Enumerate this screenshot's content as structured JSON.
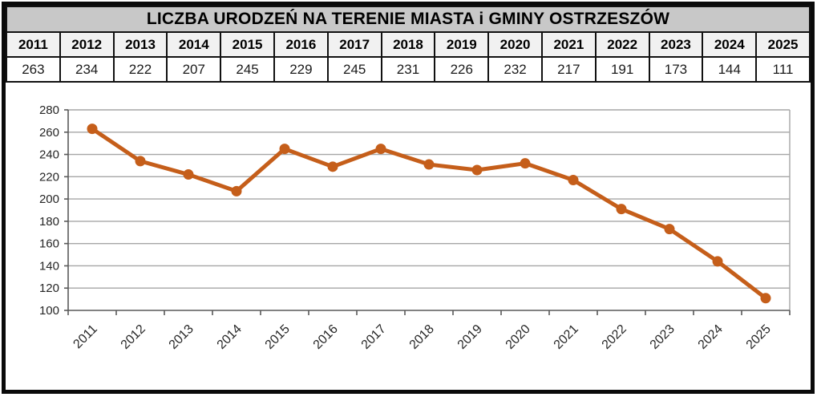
{
  "title": "LICZBA URODZEŃ NA TERENIE MIASTA i GMINY OSTRZESZÓW",
  "table": {
    "years": [
      "2011",
      "2012",
      "2013",
      "2014",
      "2015",
      "2016",
      "2017",
      "2018",
      "2019",
      "2020",
      "2021",
      "2022",
      "2023",
      "2024",
      "2025"
    ],
    "values": [
      263,
      234,
      222,
      207,
      245,
      229,
      245,
      231,
      226,
      232,
      217,
      191,
      173,
      144,
      111
    ]
  },
  "chart_data": {
    "type": "line",
    "title": "LICZBA URODZEŃ NA TERENIE MIASTA i GMINY OSTRZESZÓW",
    "categories": [
      "2011",
      "2012",
      "2013",
      "2014",
      "2015",
      "2016",
      "2017",
      "2018",
      "2019",
      "2020",
      "2021",
      "2022",
      "2023",
      "2024",
      "2025"
    ],
    "values": [
      263,
      234,
      222,
      207,
      245,
      229,
      245,
      231,
      226,
      232,
      217,
      191,
      173,
      144,
      111
    ],
    "xlabel": "",
    "ylabel": "",
    "ylim": [
      100,
      280
    ],
    "ytick_step": 20,
    "grid": true,
    "legend": false,
    "marker": "circle",
    "x_label_rotation": -45
  },
  "colors": {
    "line": "#c55e1a",
    "marker": "#c55e1a",
    "gridline": "#a6a6a6",
    "axis": "#595959",
    "axis_text": "#262626",
    "title_bg": "#c8c8c8",
    "header_bg": "#f1f1f1",
    "table_border": "#111111",
    "outer_border": "#0a0a0a"
  }
}
